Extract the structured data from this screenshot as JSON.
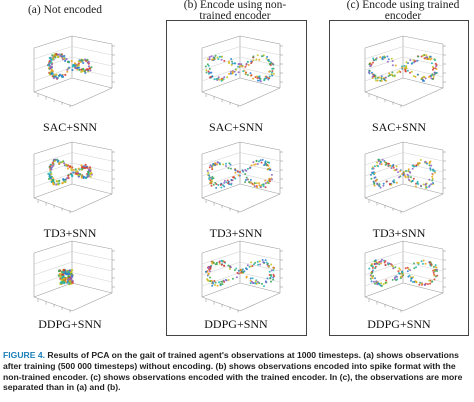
{
  "columns": [
    {
      "heading": "(a) Not encoded",
      "pattern": "small-loop"
    },
    {
      "heading": "(b) Encode using non-trained encoder",
      "pattern": "large-loop"
    },
    {
      "heading": "(c) Encode using trained encoder",
      "pattern": "large-loop"
    }
  ],
  "rows": [
    "SAC+SNN",
    "TD3+SNN",
    "DDPG+SNN"
  ],
  "caption": {
    "figure_label": "FIGURE 4.",
    "text": "Results of PCA on the gait of trained agent's observations at 1000 timesteps. (a) shows observations after training (500 000 timesteps) without encoding. (b) shows observations encoded into spike format with the non-trained encoder. (c) shows observations encoded with the trained encoder. In (c), the observations are more separated than in (a) and (b)."
  },
  "colors": {
    "accent": "#1a7fb8",
    "points": [
      "#2a7bd1",
      "#e8a21a",
      "#3aa655",
      "#d63b2f",
      "#8d5fc2",
      "#1bb3b3",
      "#c2c21b"
    ]
  }
}
